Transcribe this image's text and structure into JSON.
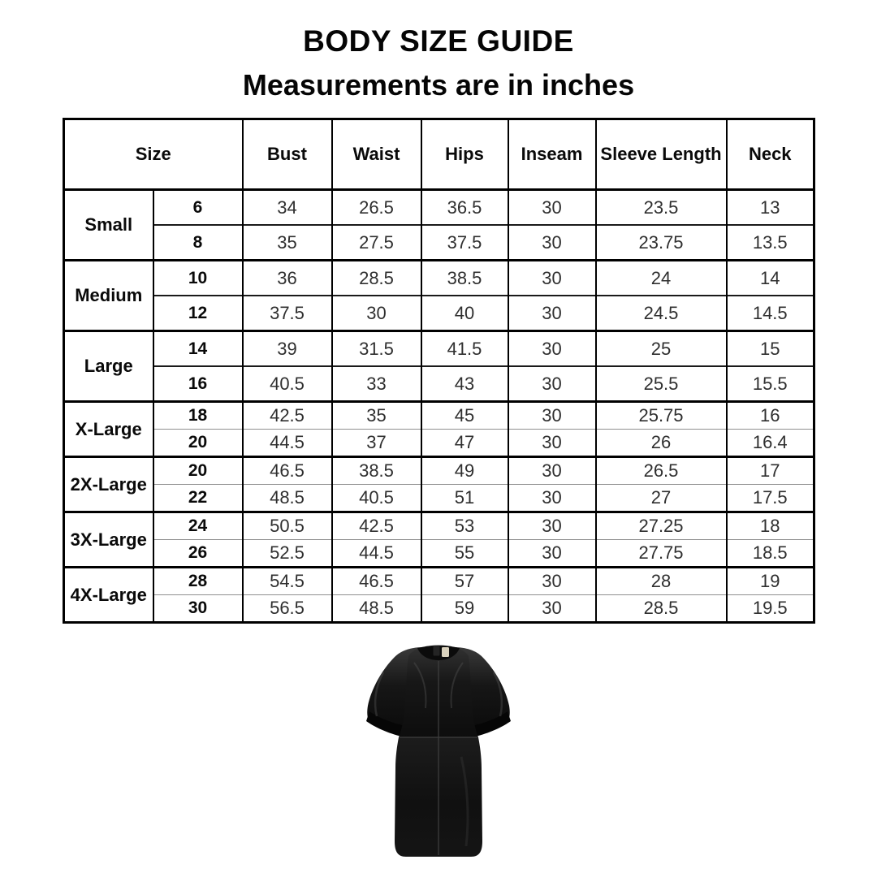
{
  "chart_data": {
    "type": "table",
    "title": "BODY SIZE GUIDE",
    "subtitle": "Measurements are in inches",
    "size_column_header": "Size",
    "measurement_columns": [
      "Bust",
      "Waist",
      "Hips",
      "Inseam",
      "Sleeve Length",
      "Neck"
    ],
    "groups": [
      {
        "label": "Small",
        "rows": [
          {
            "size": "6",
            "values": [
              "34",
              "26.5",
              "36.5",
              "30",
              "23.5",
              "13"
            ]
          },
          {
            "size": "8",
            "values": [
              "35",
              "27.5",
              "37.5",
              "30",
              "23.75",
              "13.5"
            ]
          }
        ]
      },
      {
        "label": "Medium",
        "rows": [
          {
            "size": "10",
            "values": [
              "36",
              "28.5",
              "38.5",
              "30",
              "24",
              "14"
            ]
          },
          {
            "size": "12",
            "values": [
              "37.5",
              "30",
              "40",
              "30",
              "24.5",
              "14.5"
            ]
          }
        ]
      },
      {
        "label": "Large",
        "rows": [
          {
            "size": "14",
            "values": [
              "39",
              "31.5",
              "41.5",
              "30",
              "25",
              "15"
            ]
          },
          {
            "size": "16",
            "values": [
              "40.5",
              "33",
              "43",
              "30",
              "25.5",
              "15.5"
            ]
          }
        ]
      },
      {
        "label": "X-Large",
        "rows": [
          {
            "size": "18",
            "values": [
              "42.5",
              "35",
              "45",
              "30",
              "25.75",
              "16"
            ]
          },
          {
            "size": "20",
            "values": [
              "44.5",
              "37",
              "47",
              "30",
              "26",
              "16.4"
            ]
          }
        ]
      },
      {
        "label": "2X-Large",
        "rows": [
          {
            "size": "20",
            "values": [
              "46.5",
              "38.5",
              "49",
              "30",
              "26.5",
              "17"
            ]
          },
          {
            "size": "22",
            "values": [
              "48.5",
              "40.5",
              "51",
              "30",
              "27",
              "17.5"
            ]
          }
        ]
      },
      {
        "label": "3X-Large",
        "rows": [
          {
            "size": "24",
            "values": [
              "50.5",
              "42.5",
              "53",
              "30",
              "27.25",
              "18"
            ]
          },
          {
            "size": "26",
            "values": [
              "52.5",
              "44.5",
              "55",
              "30",
              "27.75",
              "18.5"
            ]
          }
        ]
      },
      {
        "label": "4X-Large",
        "rows": [
          {
            "size": "28",
            "values": [
              "54.5",
              "46.5",
              "57",
              "30",
              "28",
              "19"
            ]
          },
          {
            "size": "30",
            "values": [
              "56.5",
              "48.5",
              "59",
              "30",
              "28.5",
              "19.5"
            ]
          }
        ]
      }
    ]
  },
  "product_image": {
    "description": "black-leather-short-sleeve-mini-dress",
    "colors": {
      "leather": "#101010",
      "highlight": "#3c3c3c",
      "label_tag": "#d9d1bd"
    }
  }
}
